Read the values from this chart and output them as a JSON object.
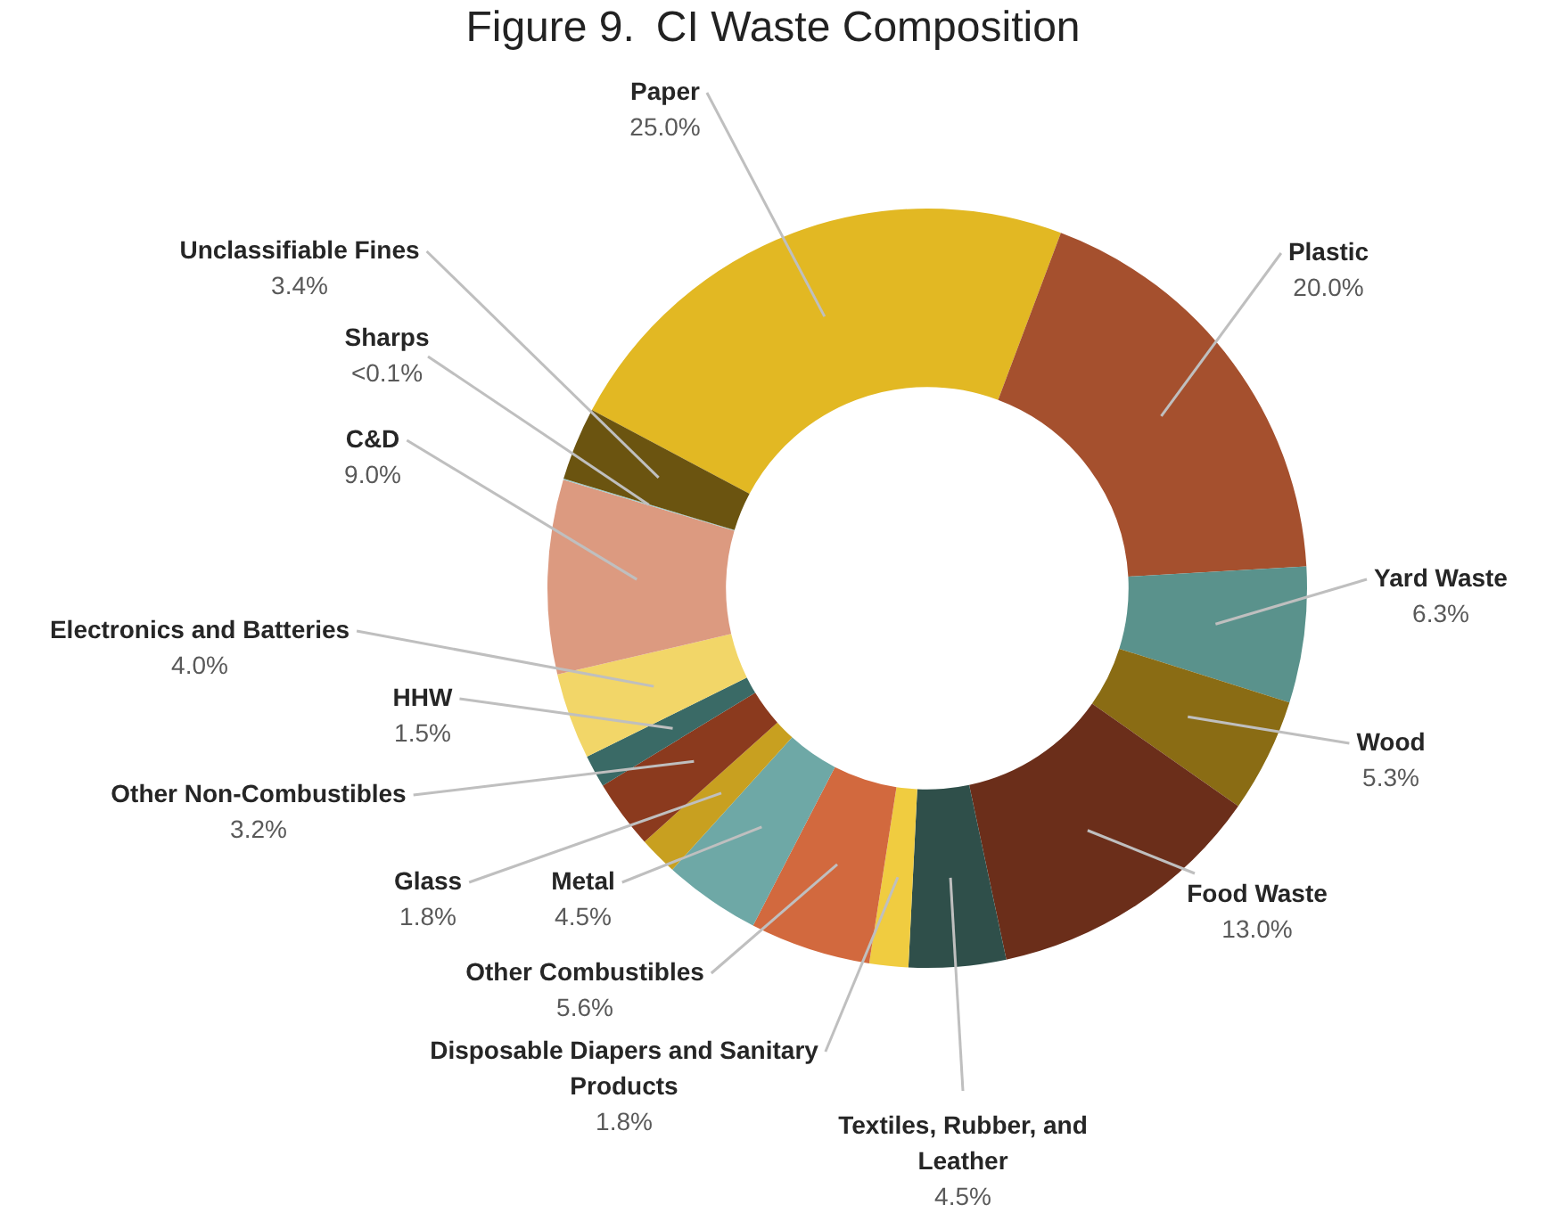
{
  "chart_data": {
    "type": "donut",
    "title": "Figure 9.\tCI Waste Composition",
    "categories": [
      "Paper",
      "Plastic",
      "Yard Waste",
      "Wood",
      "Food Waste",
      "Textiles, Rubber, and Leather",
      "Disposable Diapers and Sanitary Products",
      "Other Combustibles",
      "Metal",
      "Glass",
      "Other Non-Combustibles",
      "HHW",
      "Electronics and Batteries",
      "C&D",
      "Sharps",
      "Unclassifiable Fines"
    ],
    "values": [
      25.0,
      20.0,
      6.3,
      5.3,
      13.0,
      4.5,
      1.8,
      5.6,
      4.5,
      1.8,
      3.2,
      1.5,
      4.0,
      9.0,
      0.05,
      3.4
    ],
    "value_labels": [
      "25.0%",
      "20.0%",
      "6.3%",
      "5.3%",
      "13.0%",
      "4.5%",
      "1.8%",
      "5.6%",
      "4.5%",
      "1.8%",
      "3.2%",
      "1.5%",
      "4.0%",
      "9.0%",
      "<0.1%",
      "3.4%"
    ],
    "colors": [
      "#e2b823",
      "#a5502e",
      "#5a928c",
      "#8a6c14",
      "#6b2e1a",
      "#2f4f4a",
      "#f0cc40",
      "#d2693e",
      "#6ea8a6",
      "#c8a020",
      "#8b3a1e",
      "#3a6a66",
      "#f2d668",
      "#dc9a80",
      "#9cc8c8",
      "#6b5410"
    ]
  }
}
